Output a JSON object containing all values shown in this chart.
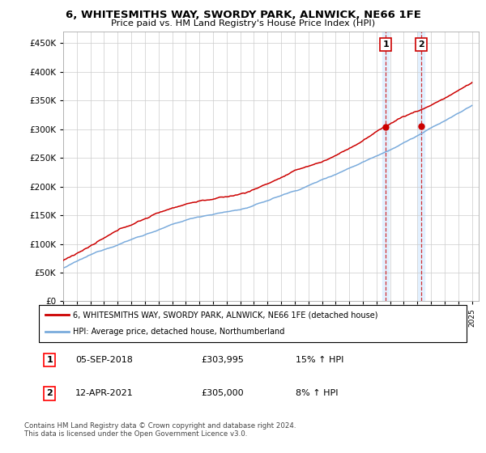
{
  "title": "6, WHITESMITHS WAY, SWORDY PARK, ALNWICK, NE66 1FE",
  "subtitle": "Price paid vs. HM Land Registry's House Price Index (HPI)",
  "ytick_values": [
    0,
    50000,
    100000,
    150000,
    200000,
    250000,
    300000,
    350000,
    400000,
    450000
  ],
  "ylim": [
    0,
    470000
  ],
  "xlim_start": 1995.0,
  "xlim_end": 2025.5,
  "legend_line1": "6, WHITESMITHS WAY, SWORDY PARK, ALNWICK, NE66 1FE (detached house)",
  "legend_line2": "HPI: Average price, detached house, Northumberland",
  "point1_date": "05-SEP-2018",
  "point1_price": "£303,995",
  "point1_hpi": "15% ↑ HPI",
  "point1_x": 2018.67,
  "point1_y": 303995,
  "point2_date": "12-APR-2021",
  "point2_price": "£305,000",
  "point2_hpi": "8% ↑ HPI",
  "point2_x": 2021.28,
  "point2_y": 305000,
  "red_color": "#cc0000",
  "blue_color": "#7aabdc",
  "vline_color": "#cc0000",
  "footnote": "Contains HM Land Registry data © Crown copyright and database right 2024.\nThis data is licensed under the Open Government Licence v3.0.",
  "grid_color": "#cccccc",
  "shaded_color": "#ddeeff"
}
